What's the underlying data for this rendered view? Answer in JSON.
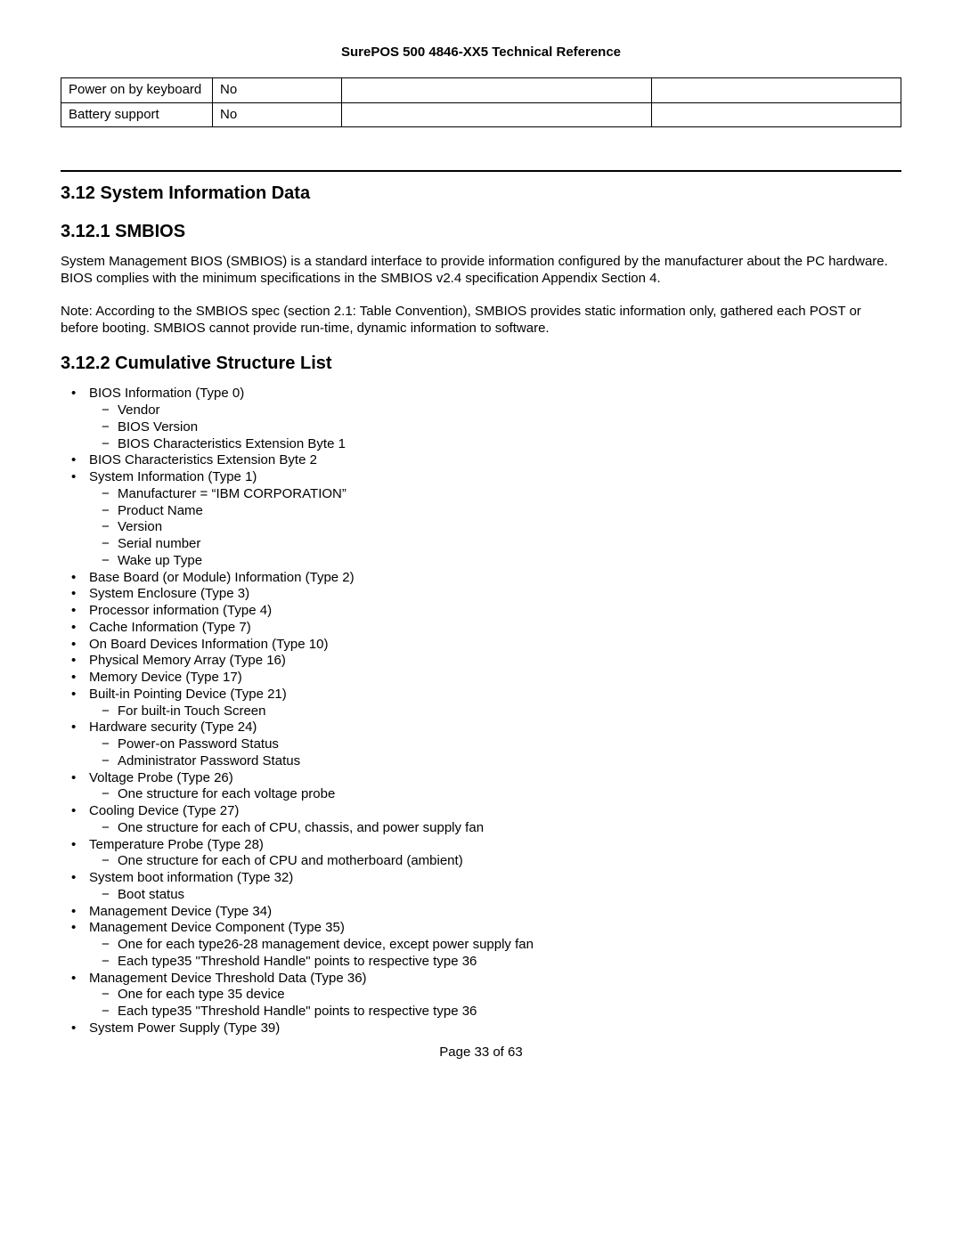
{
  "header": {
    "title": "SurePOS 500 4846-XX5 Technical Reference"
  },
  "table": {
    "rows": [
      [
        "Power on by keyboard",
        "No",
        "",
        ""
      ],
      [
        "Battery support",
        "No",
        "",
        ""
      ]
    ]
  },
  "section": {
    "number_title": "3.12  System Information Data"
  },
  "sub1": {
    "number_title": "3.12.1  SMBIOS",
    "para1": "System Management BIOS (SMBIOS) is a standard interface to provide information configured by the manufacturer about the PC hardware.  BIOS complies with the minimum specifications in the SMBIOS v2.4 specification Appendix Section 4.",
    "para2": "Note: According to the SMBIOS spec (section 2.1: Table Convention), SMBIOS provides static information only, gathered each POST or before booting.  SMBIOS cannot provide run-time, dynamic information to software."
  },
  "sub2": {
    "number_title": "3.12.2  Cumulative Structure List",
    "items": [
      {
        "text": "BIOS Information (Type 0)",
        "sub": [
          "Vendor",
          "BIOS Version",
          "BIOS Characteristics Extension Byte 1"
        ]
      },
      {
        "text": "BIOS Characteristics Extension Byte 2"
      },
      {
        "text": "System Information (Type 1)",
        "sub": [
          "Manufacturer = “IBM CORPORATION”",
          "Product Name",
          "Version",
          "Serial number",
          "Wake up Type"
        ]
      },
      {
        "text": "Base Board (or Module) Information (Type 2)"
      },
      {
        "text": "System Enclosure (Type 3)"
      },
      {
        "text": "Processor information (Type 4)"
      },
      {
        "text": "Cache Information (Type 7)"
      },
      {
        "text": "On Board Devices Information (Type 10)"
      },
      {
        "text": "Physical Memory Array (Type 16)"
      },
      {
        "text": "Memory Device (Type 17)"
      },
      {
        "text": "Built-in Pointing Device (Type 21)",
        "sub": [
          "For built-in Touch Screen"
        ]
      },
      {
        "text": "Hardware security (Type 24)",
        "sub": [
          "Power-on Password Status",
          "Administrator Password Status"
        ]
      },
      {
        "text": "Voltage Probe (Type 26)",
        "sub": [
          "One structure for each voltage probe"
        ]
      },
      {
        "text": "Cooling Device (Type 27)",
        "sub": [
          "One structure for each of CPU, chassis, and power supply fan"
        ]
      },
      {
        "text": "Temperature Probe (Type 28)",
        "sub": [
          "One structure for each of CPU and motherboard (ambient)"
        ]
      },
      {
        "text": "System boot information (Type 32)",
        "sub": [
          "Boot status"
        ]
      },
      {
        "text": "Management Device (Type 34)"
      },
      {
        "text": "Management Device Component (Type 35)",
        "sub": [
          "One for each type26-28 management device, except power supply fan",
          "Each type35 \"Threshold Handle\" points to respective type 36"
        ]
      },
      {
        "text": "Management Device Threshold Data (Type 36)",
        "sub": [
          "One for each type 35 device",
          "Each type35 \"Threshold Handle\" points to respective type 36"
        ]
      },
      {
        "text": "System Power Supply (Type 39)"
      }
    ]
  },
  "footer": {
    "page": "Page 33 of 63"
  }
}
